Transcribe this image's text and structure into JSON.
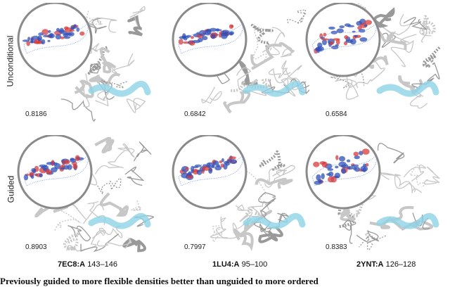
{
  "rows": [
    {
      "label": "Unconditional"
    },
    {
      "label": "Guided"
    }
  ],
  "columns": [
    {
      "pdb": "7EC8:A",
      "range": "143–146"
    },
    {
      "pdb": "1LU4:A",
      "range": "95–100"
    },
    {
      "pdb": "2YNT:A",
      "range": "126–128"
    }
  ],
  "scores": [
    [
      "0.8186",
      "0.6842",
      "0.6584"
    ],
    [
      "0.8903",
      "0.7997",
      "0.8383"
    ]
  ],
  "caption": "Previously guided to more flexible densities better than unguided to more ordered",
  "colors": {
    "ribbon": "#c7c7c7",
    "highlight": "#8fd3e6",
    "density_blue": "#2f4fb5",
    "density_red": "#d83a3a",
    "circle": "#8a8a8a"
  }
}
